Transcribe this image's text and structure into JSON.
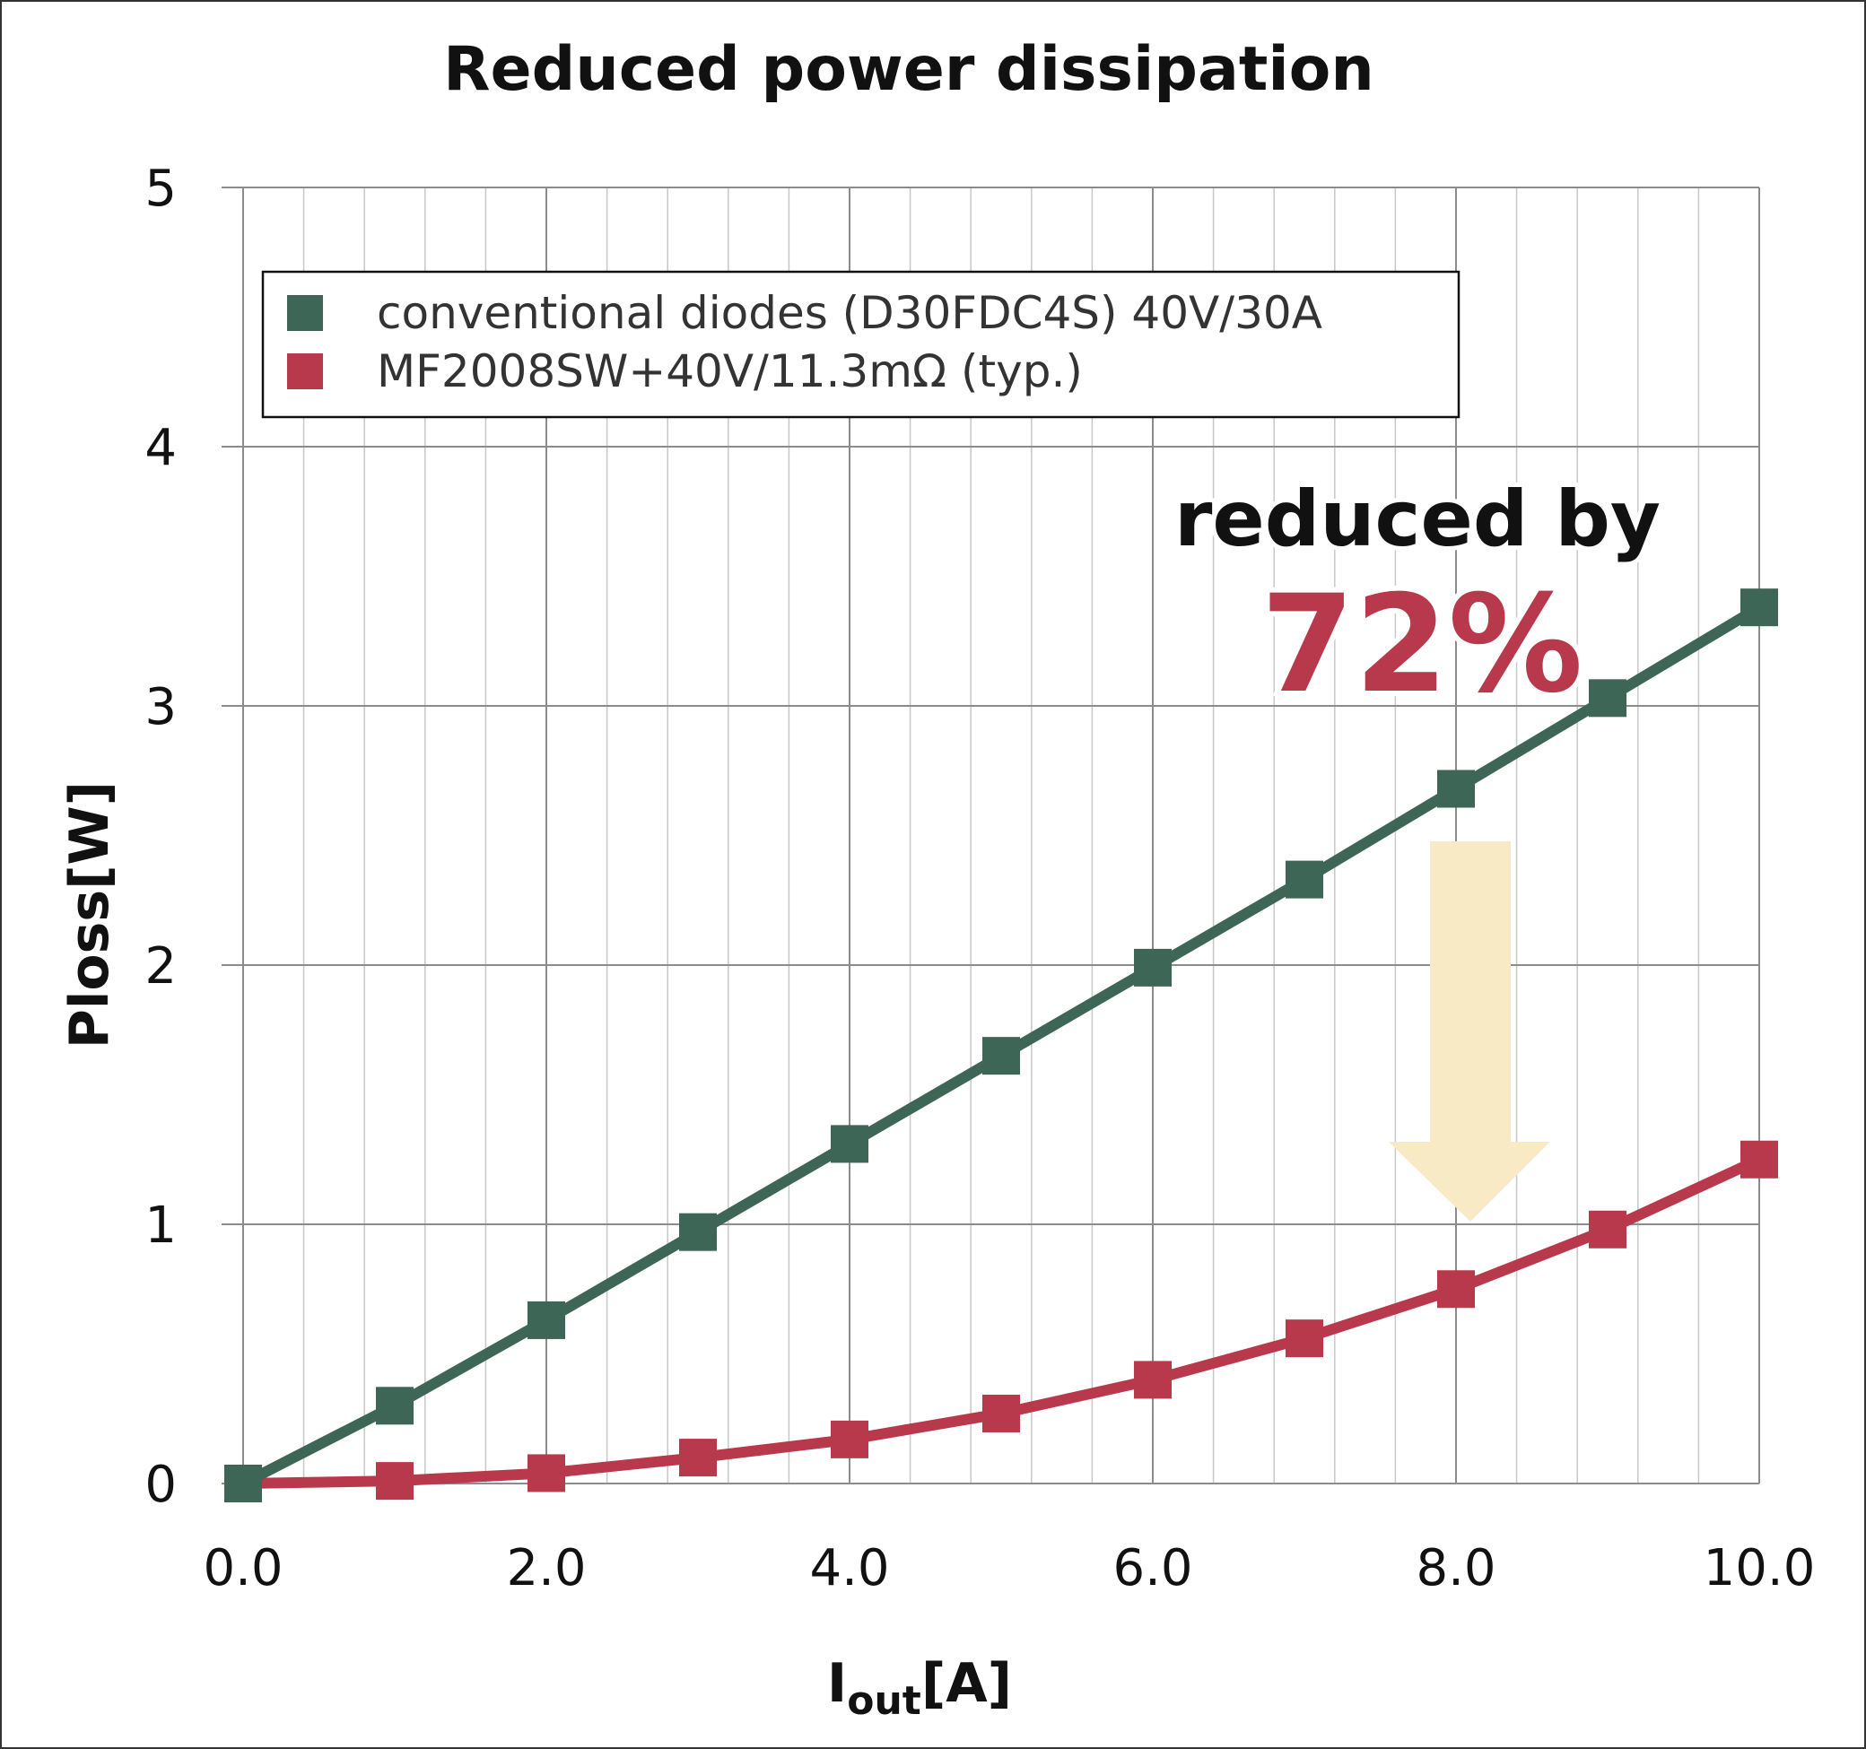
{
  "chart_data": {
    "type": "line",
    "title": "Reduced power dissipation",
    "xlabel": {
      "main": "I",
      "sub": "out",
      "unit": "[A]"
    },
    "ylabel": "Ploss[W]",
    "xlim": [
      0,
      10
    ],
    "ylim": [
      0,
      5
    ],
    "x_ticks": [
      "0.0",
      "2.0",
      "4.0",
      "6.0",
      "8.0",
      "10.0"
    ],
    "y_ticks": [
      "0",
      "1",
      "2",
      "3",
      "4",
      "5"
    ],
    "grid": true,
    "legend_position": "top-left",
    "x": [
      0,
      1,
      2,
      3,
      4,
      5,
      6,
      7,
      8,
      9,
      10
    ],
    "series": [
      {
        "name": "conventional diodes (D30FDC4S) 40V/30A",
        "color": "#3d6656",
        "values": [
          0.0,
          0.3,
          0.63,
          0.97,
          1.31,
          1.65,
          1.99,
          2.33,
          2.68,
          3.03,
          3.38
        ]
      },
      {
        "name": "MF2008SW+40V/11.3mΩ (typ.)",
        "color": "#b8394c",
        "values": [
          0.0,
          0.01,
          0.04,
          0.1,
          0.17,
          0.27,
          0.4,
          0.56,
          0.75,
          0.98,
          1.25
        ]
      }
    ],
    "annotation": {
      "text_line1": "reduced by",
      "text_line2": "72%",
      "arrow_color": "#f7eac4",
      "at_x": 8
    }
  }
}
